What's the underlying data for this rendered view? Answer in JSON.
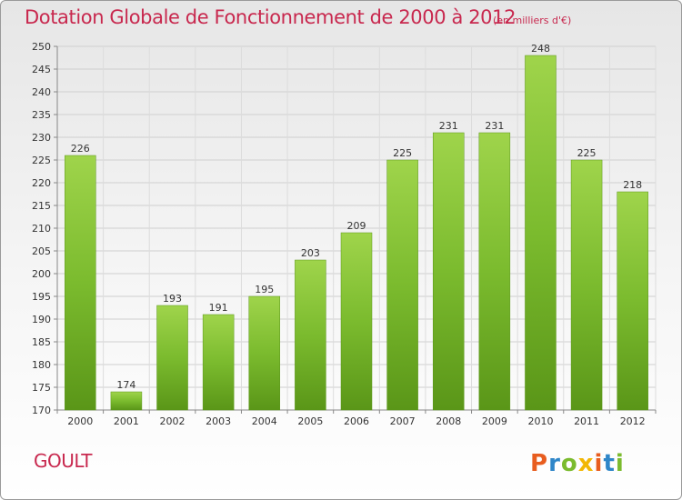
{
  "chart_data": {
    "type": "bar",
    "title": "Dotation Globale de Fonctionnement de 2000 à 2012",
    "unit_note": "(en milliers d'€)",
    "categories": [
      "2000",
      "2001",
      "2002",
      "2003",
      "2004",
      "2005",
      "2006",
      "2007",
      "2008",
      "2009",
      "2010",
      "2011",
      "2012"
    ],
    "values": [
      226,
      174,
      193,
      191,
      195,
      203,
      209,
      225,
      231,
      231,
      248,
      225,
      218
    ],
    "ylim": [
      170,
      250
    ],
    "ytick_step": 5,
    "xlabel": "",
    "ylabel": "",
    "grid": true,
    "bar_color": "#7bbb2e",
    "bar_color_light": "#9fd44b",
    "bar_color_dark": "#5a9618"
  },
  "commune": "GOULT",
  "logo": {
    "text": "Proxiti",
    "colors": [
      "#e85d1f",
      "#2f86c8",
      "#7bbb2e",
      "#f2b705"
    ]
  }
}
